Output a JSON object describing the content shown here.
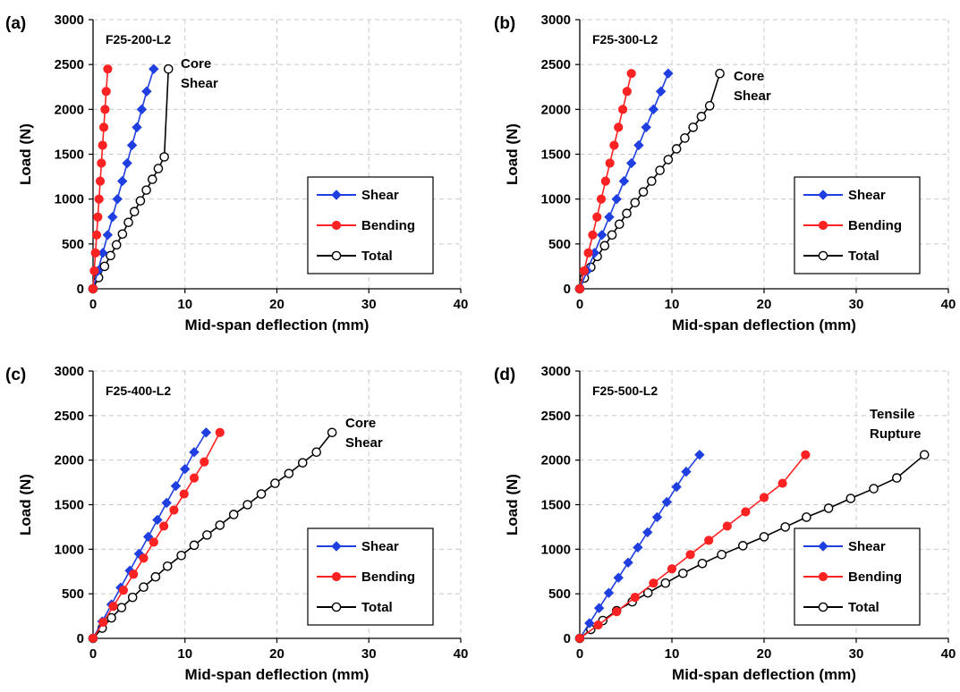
{
  "chart_data": [
    {
      "type": "line",
      "panel_label": "(a)",
      "specimen": "F25-200-L2",
      "annotation": [
        "Core",
        "Shear"
      ],
      "xlabel": "Mid-span deflection (mm)",
      "ylabel": "Load (N)",
      "xlim": [
        0,
        40
      ],
      "ylim": [
        0,
        3000
      ],
      "xticks": [
        0,
        10,
        20,
        30,
        40
      ],
      "yticks": [
        0,
        500,
        1000,
        1500,
        2000,
        2500,
        3000
      ],
      "grid": "dashed",
      "legend_position": "lower-right",
      "series": [
        {
          "name": "Shear",
          "color": "#1f3fe0",
          "marker": "diamond",
          "x": [
            0,
            0.53,
            1.06,
            1.59,
            2.12,
            2.65,
            3.18,
            3.71,
            4.24,
            4.77,
            5.3,
            5.83,
            6.6
          ],
          "y": [
            0,
            200,
            400,
            600,
            800,
            1000,
            1200,
            1400,
            1600,
            1800,
            2000,
            2200,
            2450
          ]
        },
        {
          "name": "Bending",
          "color": "#ff2222",
          "marker": "circle",
          "x": [
            0,
            0.13,
            0.26,
            0.39,
            0.52,
            0.65,
            0.78,
            0.91,
            1.04,
            1.17,
            1.3,
            1.43,
            1.6
          ],
          "y": [
            0,
            200,
            400,
            600,
            800,
            1000,
            1200,
            1400,
            1600,
            1800,
            2000,
            2200,
            2450
          ]
        },
        {
          "name": "Total",
          "color": "#000000",
          "marker": "open-circle",
          "x": [
            0,
            0.6,
            1.25,
            1.9,
            2.55,
            3.2,
            3.85,
            4.5,
            5.15,
            5.8,
            6.45,
            7.1,
            7.75,
            8.2
          ],
          "y": [
            0,
            125,
            250,
            370,
            490,
            610,
            740,
            860,
            980,
            1100,
            1220,
            1340,
            1470,
            2450
          ]
        }
      ]
    },
    {
      "type": "line",
      "panel_label": "(b)",
      "specimen": "F25-300-L2",
      "annotation": [
        "Core",
        "Shear"
      ],
      "xlabel": "Mid-span deflection (mm)",
      "ylabel": "Load (N)",
      "xlim": [
        0,
        40
      ],
      "ylim": [
        0,
        3000
      ],
      "xticks": [
        0,
        10,
        20,
        30,
        40
      ],
      "yticks": [
        0,
        500,
        1000,
        1500,
        2000,
        2500,
        3000
      ],
      "grid": "dashed",
      "legend_position": "lower-right",
      "series": [
        {
          "name": "Shear",
          "color": "#1f3fe0",
          "marker": "diamond",
          "x": [
            0,
            0.8,
            1.6,
            2.4,
            3.2,
            4.0,
            4.8,
            5.6,
            6.4,
            7.2,
            8.0,
            8.8,
            9.6
          ],
          "y": [
            0,
            200,
            400,
            600,
            800,
            1000,
            1200,
            1400,
            1600,
            1800,
            2000,
            2200,
            2400
          ]
        },
        {
          "name": "Bending",
          "color": "#ff2222",
          "marker": "circle",
          "x": [
            0,
            0.47,
            0.93,
            1.4,
            1.87,
            2.33,
            2.8,
            3.27,
            3.73,
            4.2,
            4.67,
            5.13,
            5.6
          ],
          "y": [
            0,
            200,
            400,
            600,
            800,
            1000,
            1200,
            1400,
            1600,
            1800,
            2000,
            2200,
            2400
          ]
        },
        {
          "name": "Total",
          "color": "#000000",
          "marker": "open-circle",
          "x": [
            0,
            0.5,
            1.2,
            1.9,
            2.7,
            3.5,
            4.3,
            5.1,
            6.0,
            6.9,
            7.8,
            8.7,
            9.6,
            10.5,
            11.4,
            12.3,
            13.2,
            14.1,
            15.2
          ],
          "y": [
            0,
            120,
            240,
            360,
            480,
            600,
            720,
            840,
            960,
            1080,
            1200,
            1320,
            1440,
            1560,
            1680,
            1800,
            1920,
            2040,
            2400
          ]
        }
      ]
    },
    {
      "type": "line",
      "panel_label": "(c)",
      "specimen": "F25-400-L2",
      "annotation": [
        "Core",
        "Shear"
      ],
      "xlabel": "Mid-span deflection (mm)",
      "ylabel": "Load (N)",
      "xlim": [
        0,
        40
      ],
      "ylim": [
        0,
        3000
      ],
      "xticks": [
        0,
        10,
        20,
        30,
        40
      ],
      "yticks": [
        0,
        500,
        1000,
        1500,
        2000,
        2500,
        3000
      ],
      "grid": "dashed",
      "legend_position": "lower-right",
      "series": [
        {
          "name": "Shear",
          "color": "#1f3fe0",
          "marker": "diamond",
          "x": [
            0,
            1.0,
            2.0,
            3.0,
            4.0,
            5.0,
            6.0,
            7.0,
            8.0,
            9.0,
            10.0,
            11.0,
            12.3
          ],
          "y": [
            0,
            190,
            380,
            570,
            760,
            950,
            1140,
            1330,
            1520,
            1710,
            1900,
            2090,
            2310
          ]
        },
        {
          "name": "Bending",
          "color": "#ff2222",
          "marker": "circle",
          "x": [
            0,
            1.1,
            2.2,
            3.3,
            4.4,
            5.5,
            6.6,
            7.7,
            8.8,
            9.9,
            11.0,
            12.1,
            13.8
          ],
          "y": [
            0,
            180,
            360,
            540,
            720,
            900,
            1080,
            1260,
            1440,
            1620,
            1800,
            1980,
            2310
          ]
        },
        {
          "name": "Total",
          "color": "#000000",
          "marker": "open-circle",
          "x": [
            0,
            1.0,
            2.0,
            3.1,
            4.3,
            5.5,
            6.8,
            8.1,
            9.6,
            11.0,
            12.4,
            13.8,
            15.3,
            16.8,
            18.3,
            19.8,
            21.3,
            22.8,
            24.3,
            26.0
          ],
          "y": [
            0,
            115,
            230,
            345,
            460,
            575,
            690,
            810,
            930,
            1045,
            1160,
            1270,
            1390,
            1500,
            1620,
            1740,
            1850,
            1970,
            2090,
            2310
          ]
        }
      ]
    },
    {
      "type": "line",
      "panel_label": "(d)",
      "specimen": "F25-500-L2",
      "annotation": [
        "Tensile",
        "Rupture"
      ],
      "xlabel": "Mid-span deflection (mm)",
      "ylabel": "Load (N)",
      "xlim": [
        0,
        40
      ],
      "ylim": [
        0,
        3000
      ],
      "xticks": [
        0,
        10,
        20,
        30,
        40
      ],
      "yticks": [
        0,
        500,
        1000,
        1500,
        2000,
        2500,
        3000
      ],
      "grid": "dashed",
      "legend_position": "lower-right",
      "series": [
        {
          "name": "Shear",
          "color": "#1f3fe0",
          "marker": "diamond",
          "x": [
            0,
            1.05,
            2.1,
            3.15,
            4.2,
            5.25,
            6.3,
            7.35,
            8.4,
            9.45,
            10.5,
            11.55,
            13.0
          ],
          "y": [
            0,
            170,
            340,
            510,
            680,
            850,
            1020,
            1190,
            1360,
            1530,
            1700,
            1870,
            2060
          ]
        },
        {
          "name": "Bending",
          "color": "#ff2222",
          "marker": "circle",
          "x": [
            0,
            2.0,
            4.0,
            6.0,
            8.0,
            10.0,
            12.0,
            14.0,
            16.0,
            18.0,
            20.0,
            22.0,
            24.5
          ],
          "y": [
            0,
            150,
            300,
            460,
            620,
            780,
            940,
            1100,
            1260,
            1420,
            1580,
            1740,
            2060
          ]
        },
        {
          "name": "Total",
          "color": "#000000",
          "marker": "open-circle",
          "x": [
            0,
            1.2,
            2.5,
            4.0,
            5.7,
            7.4,
            9.3,
            11.2,
            13.3,
            15.4,
            17.7,
            20.0,
            22.3,
            24.6,
            27.0,
            29.4,
            31.9,
            34.4,
            37.4
          ],
          "y": [
            0,
            100,
            200,
            310,
            410,
            510,
            620,
            730,
            840,
            940,
            1040,
            1140,
            1250,
            1360,
            1460,
            1570,
            1680,
            1800,
            2060
          ]
        }
      ]
    }
  ]
}
